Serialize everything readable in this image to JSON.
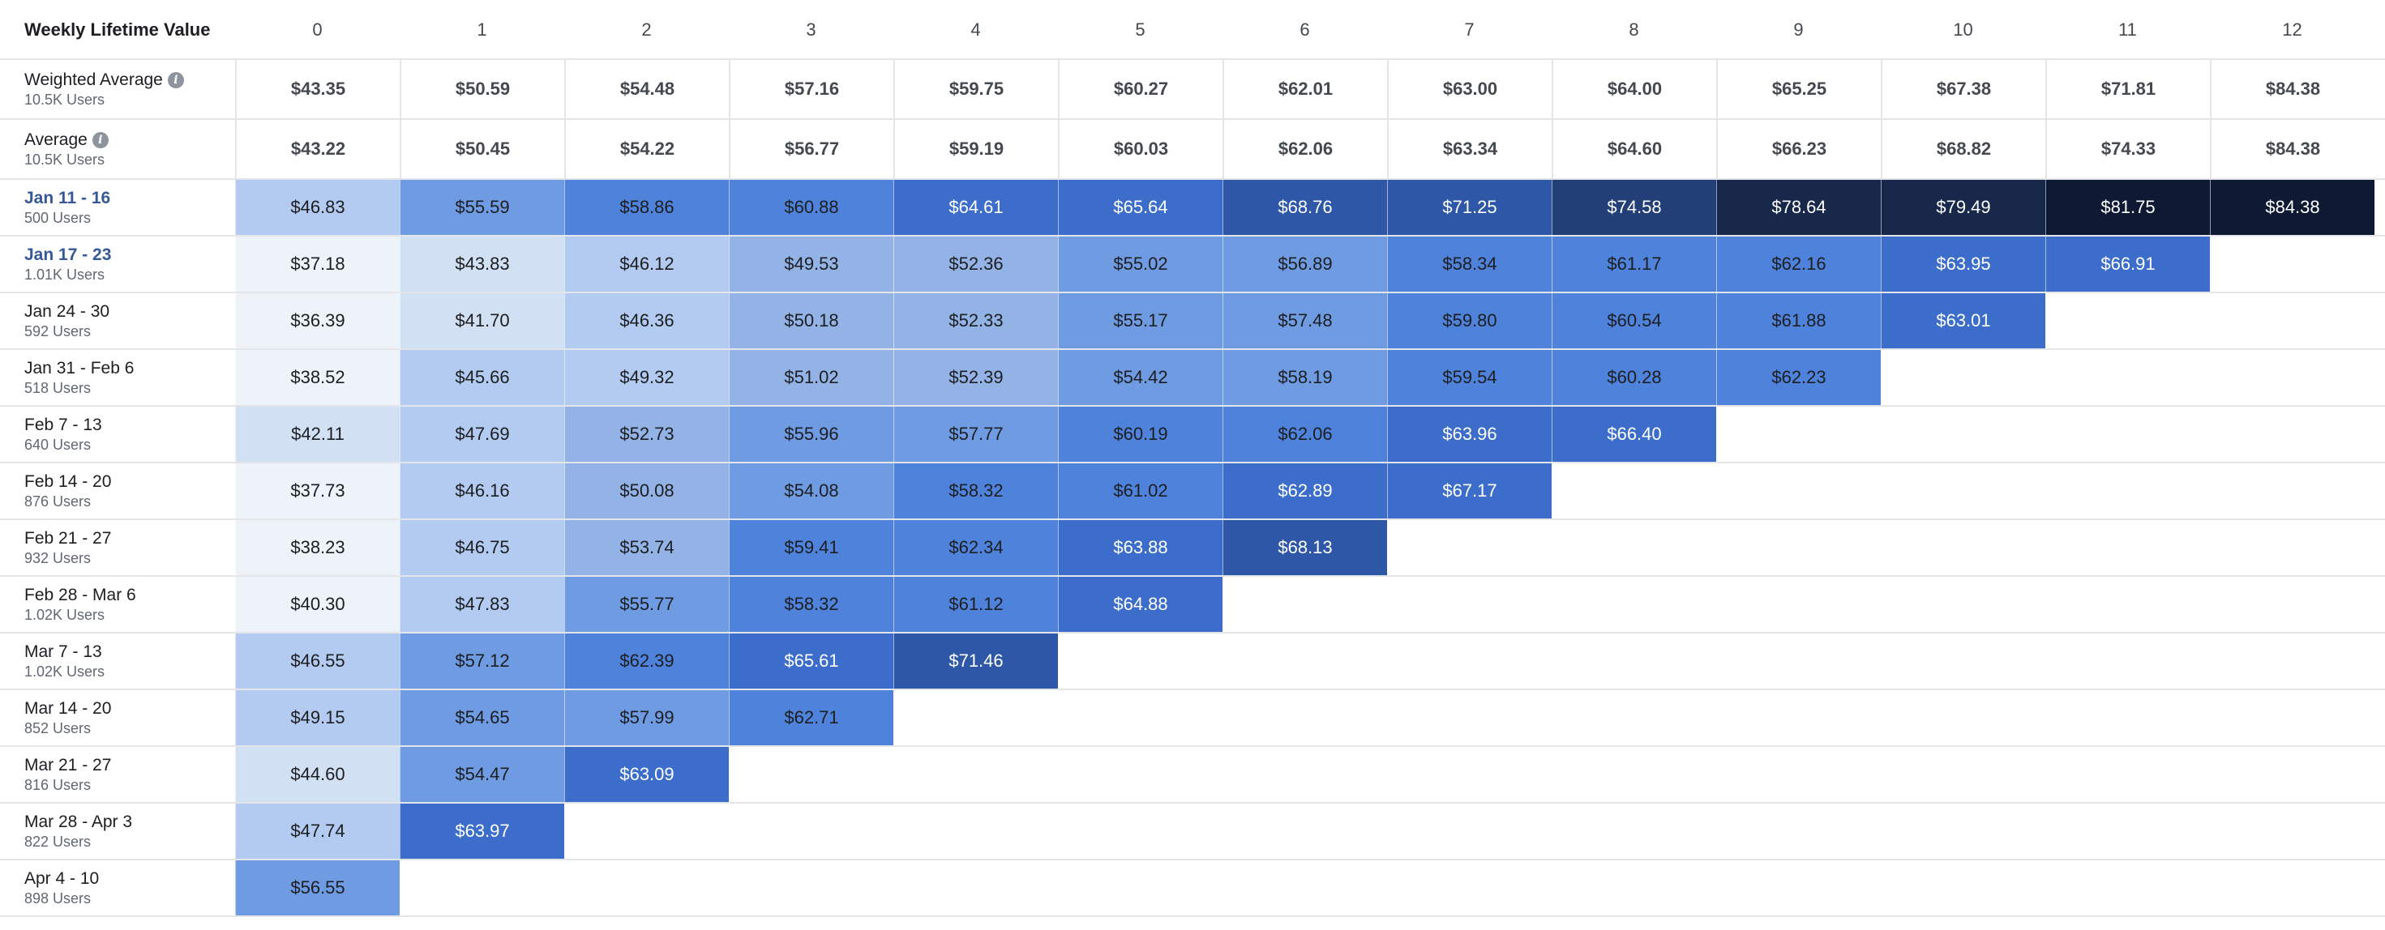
{
  "table": {
    "title": "Weekly Lifetime Value",
    "columns": [
      "0",
      "1",
      "2",
      "3",
      "4",
      "5",
      "6",
      "7",
      "8",
      "9",
      "10",
      "11",
      "12"
    ],
    "summary_rows": [
      {
        "label": "Weighted Average",
        "sublabel": "10.5K Users",
        "info_icon": "info-icon",
        "values": [
          "$43.35",
          "$50.59",
          "$54.48",
          "$57.16",
          "$59.75",
          "$60.27",
          "$62.01",
          "$63.00",
          "$64.00",
          "$65.25",
          "$67.38",
          "$71.81",
          "$84.38"
        ]
      },
      {
        "label": "Average",
        "sublabel": "10.5K Users",
        "info_icon": "info-icon",
        "values": [
          "$43.22",
          "$50.45",
          "$54.22",
          "$56.77",
          "$59.19",
          "$60.03",
          "$62.06",
          "$63.34",
          "$64.60",
          "$66.23",
          "$68.82",
          "$74.33",
          "$84.38"
        ]
      }
    ],
    "cohorts": [
      {
        "label": "Jan 11 - 16",
        "sublabel": "500 Users",
        "link": true,
        "values": [
          46.83,
          55.59,
          58.86,
          60.88,
          64.61,
          65.64,
          68.76,
          71.25,
          74.58,
          78.64,
          79.49,
          81.75,
          84.38
        ],
        "display": [
          "$46.83",
          "$55.59",
          "$58.86",
          "$60.88",
          "$64.61",
          "$65.64",
          "$68.76",
          "$71.25",
          "$74.58",
          "$78.64",
          "$79.49",
          "$81.75",
          "$84.38"
        ]
      },
      {
        "label": "Jan 17 - 23",
        "sublabel": "1.01K Users",
        "link": true,
        "values": [
          37.18,
          43.83,
          46.12,
          49.53,
          52.36,
          55.02,
          56.89,
          58.34,
          61.17,
          62.16,
          63.95,
          66.91
        ],
        "display": [
          "$37.18",
          "$43.83",
          "$46.12",
          "$49.53",
          "$52.36",
          "$55.02",
          "$56.89",
          "$58.34",
          "$61.17",
          "$62.16",
          "$63.95",
          "$66.91"
        ]
      },
      {
        "label": "Jan 24 - 30",
        "sublabel": "592 Users",
        "link": false,
        "values": [
          36.39,
          41.7,
          46.36,
          50.18,
          52.33,
          55.17,
          57.48,
          59.8,
          60.54,
          61.88,
          63.01
        ],
        "display": [
          "$36.39",
          "$41.70",
          "$46.36",
          "$50.18",
          "$52.33",
          "$55.17",
          "$57.48",
          "$59.80",
          "$60.54",
          "$61.88",
          "$63.01"
        ]
      },
      {
        "label": "Jan 31 - Feb 6",
        "sublabel": "518 Users",
        "link": false,
        "values": [
          38.52,
          45.66,
          49.32,
          51.02,
          52.39,
          54.42,
          58.19,
          59.54,
          60.28,
          62.23
        ],
        "display": [
          "$38.52",
          "$45.66",
          "$49.32",
          "$51.02",
          "$52.39",
          "$54.42",
          "$58.19",
          "$59.54",
          "$60.28",
          "$62.23"
        ]
      },
      {
        "label": "Feb 7 - 13",
        "sublabel": "640 Users",
        "link": false,
        "values": [
          42.11,
          47.69,
          52.73,
          55.96,
          57.77,
          60.19,
          62.06,
          63.96,
          66.4
        ],
        "display": [
          "$42.11",
          "$47.69",
          "$52.73",
          "$55.96",
          "$57.77",
          "$60.19",
          "$62.06",
          "$63.96",
          "$66.40"
        ]
      },
      {
        "label": "Feb 14 - 20",
        "sublabel": "876 Users",
        "link": false,
        "values": [
          37.73,
          46.16,
          50.08,
          54.08,
          58.32,
          61.02,
          62.89,
          67.17
        ],
        "display": [
          "$37.73",
          "$46.16",
          "$50.08",
          "$54.08",
          "$58.32",
          "$61.02",
          "$62.89",
          "$67.17"
        ]
      },
      {
        "label": "Feb 21 - 27",
        "sublabel": "932 Users",
        "link": false,
        "values": [
          38.23,
          46.75,
          53.74,
          59.41,
          62.34,
          63.88,
          68.13
        ],
        "display": [
          "$38.23",
          "$46.75",
          "$53.74",
          "$59.41",
          "$62.34",
          "$63.88",
          "$68.13"
        ]
      },
      {
        "label": "Feb 28 - Mar 6",
        "sublabel": "1.02K Users",
        "link": false,
        "values": [
          40.3,
          47.83,
          55.77,
          58.32,
          61.12,
          64.88
        ],
        "display": [
          "$40.30",
          "$47.83",
          "$55.77",
          "$58.32",
          "$61.12",
          "$64.88"
        ]
      },
      {
        "label": "Mar 7 - 13",
        "sublabel": "1.02K Users",
        "link": false,
        "values": [
          46.55,
          57.12,
          62.39,
          65.61,
          71.46
        ],
        "display": [
          "$46.55",
          "$57.12",
          "$62.39",
          "$65.61",
          "$71.46"
        ]
      },
      {
        "label": "Mar 14 - 20",
        "sublabel": "852 Users",
        "link": false,
        "values": [
          49.15,
          54.65,
          57.99,
          62.71
        ],
        "display": [
          "$49.15",
          "$54.65",
          "$57.99",
          "$62.71"
        ]
      },
      {
        "label": "Mar 21 - 27",
        "sublabel": "816 Users",
        "link": false,
        "values": [
          44.6,
          54.47,
          63.09
        ],
        "display": [
          "$44.60",
          "$54.47",
          "$63.09"
        ]
      },
      {
        "label": "Mar 28 - Apr 3",
        "sublabel": "822 Users",
        "link": false,
        "values": [
          47.74,
          63.97
        ],
        "display": [
          "$47.74",
          "$63.97"
        ]
      },
      {
        "label": "Apr 4 - 10",
        "sublabel": "898 Users",
        "link": false,
        "values": [
          56.55
        ],
        "display": [
          "$56.55"
        ]
      }
    ]
  },
  "colors": {
    "scale": [
      "#eef3fa",
      "#d2e0f4",
      "#b3cbf0",
      "#93b3e6",
      "#6f9be3",
      "#4f83db",
      "#3c6dcb",
      "#2f57a8",
      "#233f78",
      "#17284b",
      "#0e1a33"
    ],
    "text_dark": "#1c1e21",
    "text_light": "#ffffff",
    "link": "#365899",
    "border": "#e3e5e8"
  }
}
